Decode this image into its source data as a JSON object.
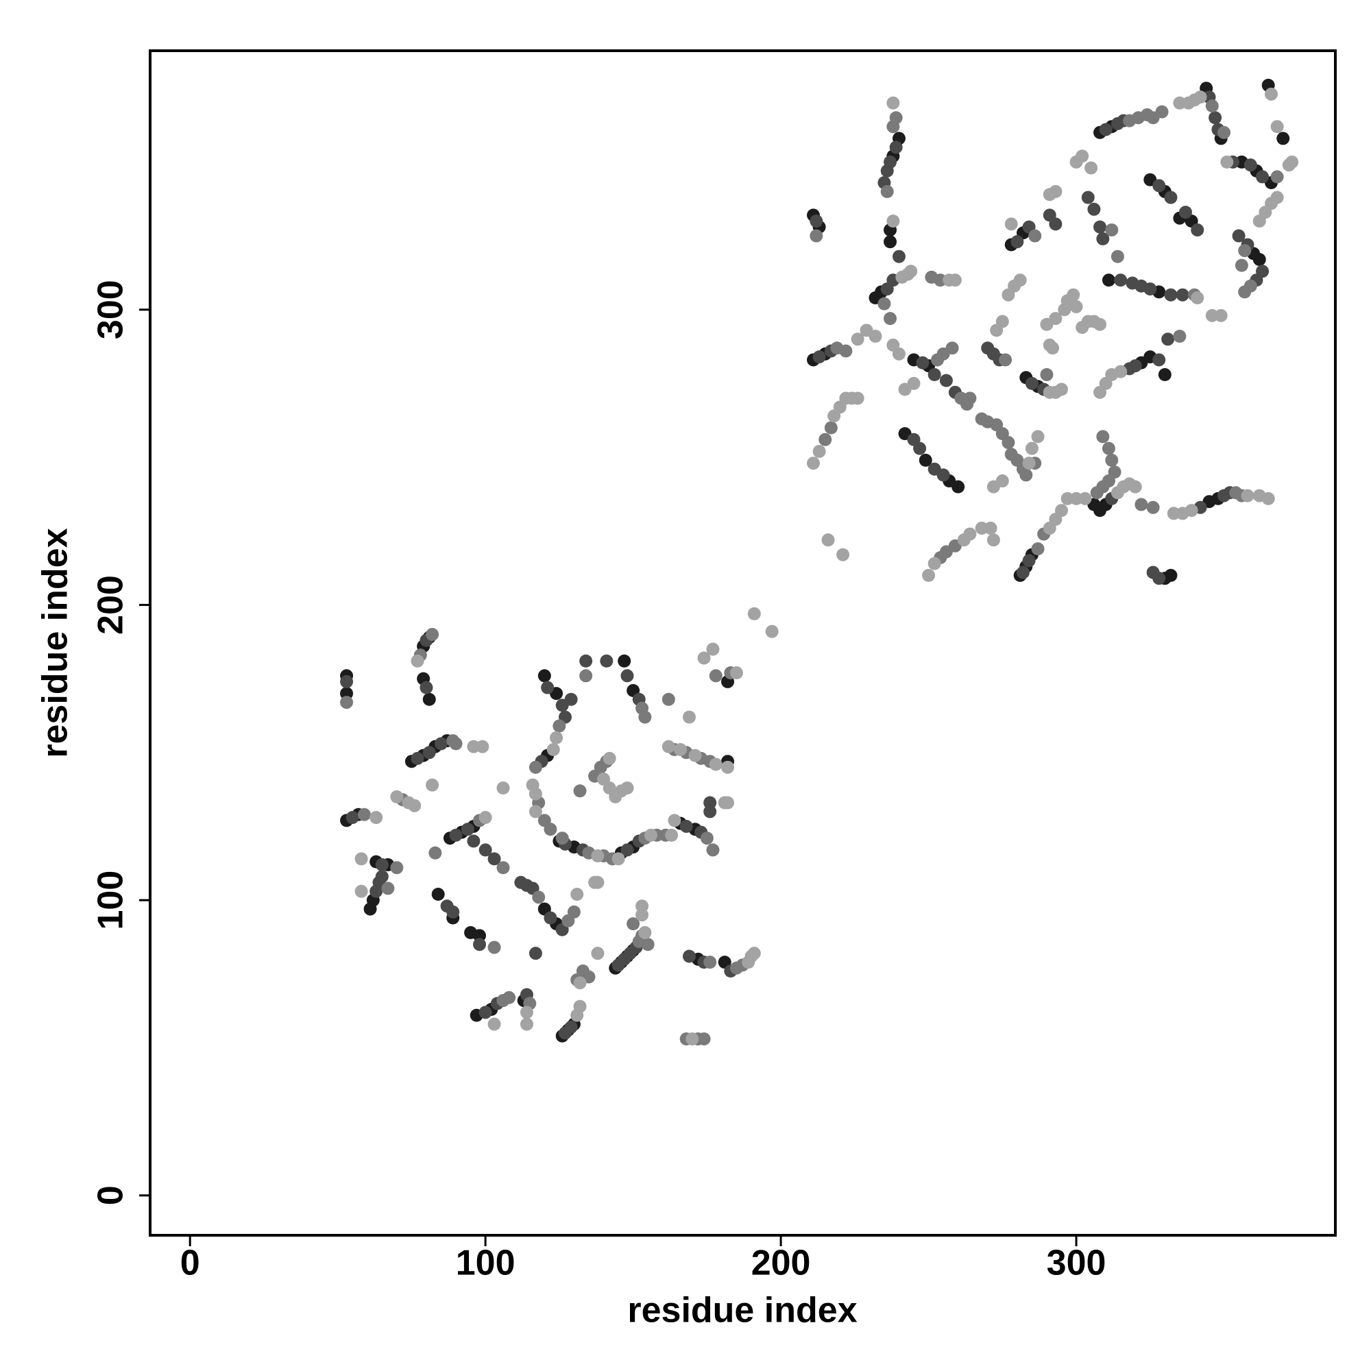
{
  "chart_data": {
    "type": "scatter",
    "xlabel": "residue index",
    "ylabel": "residue index",
    "xlim": [
      -13.5,
      387.7
    ],
    "ylim": [
      -13.5,
      387.7
    ],
    "xticks": [
      0,
      100,
      200,
      300
    ],
    "yticks": [
      0,
      100,
      200,
      300
    ],
    "series": [
      {
        "color": "#1c1c1c",
        "x": [
          53,
          53,
          79,
          81,
          79,
          81,
          75,
          79,
          83,
          87,
          53,
          57,
          63,
          67,
          62,
          61,
          88,
          92,
          96,
          84,
          89,
          95,
          98,
          97,
          102,
          113,
          120,
          124,
          126,
          128,
          130,
          144,
          146,
          148,
          150,
          172,
          181,
          147,
          150,
          182,
          182,
          166,
          171,
          146,
          150,
          125,
          130,
          120,
          124,
          121,
          211,
          213,
          211,
          215,
          237,
          237,
          238,
          240,
          234,
          232,
          245,
          250,
          242,
          249,
          257,
          260,
          281,
          283,
          285,
          278,
          282,
          283,
          287,
          306,
          308,
          310,
          322,
          325,
          330,
          308,
          312,
          325,
          330,
          335,
          339,
          344,
          349,
          356,
          361,
          366,
          370,
          360,
          362,
          332,
          330,
          345,
          348,
          311,
          328,
          365
        ],
        "values": [
          176,
          170,
          186,
          189,
          175,
          168,
          147,
          149,
          152,
          154,
          127,
          129,
          113,
          112,
          100,
          97,
          121,
          123,
          125,
          102,
          94,
          89,
          88,
          61,
          63,
          66,
          97,
          92,
          54,
          56,
          58,
          77,
          79,
          81,
          83,
          80,
          79,
          181,
          171,
          174,
          147,
          126,
          124,
          116,
          118,
          120,
          118,
          176,
          170,
          149,
          332,
          328,
          283,
          285,
          327,
          323,
          352,
          358,
          306,
          304,
          283,
          281,
          258,
          249,
          242,
          240,
          210,
          213,
          217,
          322,
          326,
          277,
          274,
          234,
          232,
          234,
          282,
          284,
          278,
          360,
          362,
          344,
          340,
          331,
          330,
          375,
          358,
          350,
          347,
          343,
          358,
          319,
          317,
          210,
          209,
          235,
          236,
          310,
          306,
          376
        ]
      },
      {
        "color": "#4a4a4a",
        "x": [
          53,
          80,
          80,
          77,
          81,
          85,
          55,
          65,
          65,
          64,
          63,
          90,
          94,
          96,
          100,
          103,
          87,
          89,
          98,
          100,
          104,
          114,
          112,
          114,
          116,
          122,
          126,
          117,
          127,
          129,
          145,
          147,
          149,
          151,
          169,
          174,
          183,
          141,
          148,
          152,
          134,
          176,
          176,
          168,
          173,
          148,
          152,
          127,
          133,
          121,
          126,
          127,
          129,
          119,
          212,
          213,
          217,
          235,
          236,
          237,
          239,
          236,
          238,
          240,
          248,
          252,
          256,
          259,
          245,
          247,
          252,
          255,
          282,
          284,
          270,
          272,
          274,
          280,
          284,
          291,
          293,
          285,
          289,
          312,
          304,
          306,
          308,
          309,
          318,
          320,
          328,
          310,
          314,
          316,
          328,
          332,
          337,
          341,
          345,
          347,
          348,
          353,
          359,
          363,
          355,
          358,
          363,
          361,
          328,
          326,
          342,
          350,
          352,
          315,
          319,
          322,
          325,
          332,
          336,
          331
        ],
        "values": [
          174,
          188,
          172,
          148,
          150,
          153,
          128,
          112,
          108,
          106,
          103,
          122,
          124,
          120,
          117,
          114,
          98,
          96,
          85,
          62,
          65,
          68,
          106,
          105,
          104,
          94,
          90,
          82,
          55,
          57,
          78,
          80,
          82,
          84,
          81,
          79,
          76,
          181,
          176,
          168,
          181,
          130,
          133,
          125,
          123,
          117,
          120,
          119,
          117,
          172,
          166,
          162,
          168,
          147,
          330,
          284,
          286,
          343,
          347,
          350,
          355,
          307,
          310,
          318,
          282,
          278,
          276,
          272,
          256,
          253,
          246,
          244,
          211,
          215,
          287,
          285,
          283,
          323,
          328,
          332,
          329,
          275,
          273,
          236,
          338,
          334,
          328,
          324,
          280,
          281,
          283,
          361,
          363,
          364,
          342,
          338,
          333,
          327,
          372,
          365,
          361,
          350,
          349,
          345,
          325,
          322,
          313,
          310,
          209,
          211,
          233,
          237,
          238,
          310,
          309,
          308,
          307,
          305,
          305,
          290
        ]
      },
      {
        "color": "#7a7a7a",
        "x": [
          53,
          78,
          82,
          89,
          90,
          72,
          59,
          70,
          67,
          83,
          98,
          106,
          103,
          106,
          108,
          115,
          118,
          128,
          130,
          131,
          133,
          135,
          152,
          153,
          155,
          150,
          168,
          172,
          174,
          176,
          185,
          187,
          178,
          183,
          164,
          168,
          173,
          176,
          162,
          175,
          177,
          154,
          158,
          161,
          135,
          140,
          143,
          153,
          154,
          134,
          132,
          141,
          139,
          137,
          117,
          125,
          118,
          120,
          122,
          126,
          212,
          219,
          222,
          215,
          217,
          238,
          239,
          236,
          237,
          235,
          251,
          254,
          253,
          255,
          258,
          261,
          263,
          264,
          254,
          256,
          259,
          268,
          270,
          273,
          275,
          277,
          278,
          280,
          282,
          283,
          286,
          287,
          289,
          276,
          286,
          290,
          309,
          311,
          312,
          313,
          311,
          309,
          307,
          318,
          321,
          324,
          326,
          329,
          346,
          350,
          368,
          359,
          357,
          356,
          357,
          322,
          326,
          354,
          356,
          312,
          314,
          335,
          340
        ],
        "values": [
          167,
          183,
          190,
          154,
          153,
          134,
          129,
          111,
          104,
          116,
          127,
          111,
          84,
          66,
          67,
          65,
          101,
          93,
          96,
          73,
          76,
          74,
          86,
          88,
          85,
          92,
          53,
          53,
          53,
          79,
          77,
          78,
          176,
          177,
          151,
          150,
          148,
          147,
          168,
          121,
          117,
          121,
          122,
          122,
          116,
          115,
          114,
          165,
          162,
          176,
          137,
          147,
          145,
          142,
          145,
          159,
          133,
          127,
          124,
          121,
          325,
          287,
          286,
          256,
          260,
          362,
          365,
          340,
          297,
          302,
          311,
          310,
          283,
          285,
          287,
          270,
          268,
          270,
          216,
          218,
          220,
          263,
          262,
          261,
          258,
          255,
          251,
          249,
          246,
          244,
          248,
          219,
          224,
          283,
          325,
          278,
          257,
          253,
          249,
          245,
          242,
          240,
          238,
          364,
          365,
          366,
          365,
          367,
          369,
          360,
          345,
          308,
          306,
          315,
          320,
          234,
          233,
          238,
          237,
          327,
          318,
          291,
          305
        ]
      },
      {
        "color": "#a3a3a3",
        "x": [
          77,
          74,
          76,
          70,
          63,
          58,
          58,
          82,
          100,
          103,
          114,
          114,
          131,
          132,
          132,
          131,
          138,
          137,
          138,
          153,
          153,
          154,
          170,
          189,
          190,
          191,
          191,
          197,
          174,
          177,
          185,
          182,
          181,
          182,
          162,
          166,
          171,
          178,
          169,
          164,
          156,
          163,
          145,
          138,
          142,
          140,
          142,
          144,
          146,
          148,
          123,
          124,
          116,
          117,
          117,
          106,
          96,
          99,
          211,
          213,
          218,
          220,
          222,
          224,
          226,
          216,
          221,
          226,
          229,
          232,
          238,
          240,
          238,
          238,
          241,
          243,
          244,
          257,
          259,
          245,
          242,
          250,
          252,
          262,
          264,
          268,
          271,
          272,
          272,
          275,
          284,
          285,
          287,
          291,
          293,
          295,
          273,
          275,
          277,
          279,
          281,
          278,
          291,
          293,
          291,
          293,
          295,
          290,
          293,
          296,
          297,
          299,
          300,
          291,
          292,
          297,
          300,
          303,
          314,
          316,
          318,
          320,
          302,
          304,
          306,
          308,
          308,
          310,
          312,
          315,
          300,
          302,
          305,
          335,
          338,
          340,
          342,
          351,
          372,
          373,
          366,
          368,
          362,
          364,
          366,
          368,
          341,
          346,
          349,
          333,
          336,
          339,
          358,
          362,
          365
        ],
        "values": [
          181,
          133,
          132,
          135,
          128,
          114,
          103,
          139,
          128,
          58,
          62,
          58,
          102,
          72,
          64,
          61,
          82,
          106,
          106,
          98,
          95,
          89,
          53,
          79,
          81,
          82,
          197,
          191,
          182,
          185,
          177,
          145,
          133,
          133,
          152,
          151,
          149,
          146,
          162,
          127,
          122,
          122,
          114,
          115,
          148,
          141,
          138,
          135,
          137,
          138,
          151,
          155,
          139,
          136,
          130,
          138,
          152,
          152,
          248,
          252,
          264,
          267,
          270,
          270,
          270,
          222,
          217,
          290,
          293,
          291,
          288,
          285,
          370,
          330,
          311,
          312,
          313,
          310,
          310,
          275,
          273,
          210,
          214,
          222,
          224,
          226,
          226,
          222,
          240,
          242,
          248,
          253,
          257,
          226,
          229,
          232,
          293,
          296,
          305,
          308,
          310,
          329,
          339,
          340,
          272,
          272,
          273,
          295,
          297,
          300,
          303,
          305,
          301,
          288,
          287,
          236,
          236,
          236,
          238,
          240,
          241,
          240,
          294,
          296,
          296,
          295,
          272,
          275,
          278,
          279,
          350,
          352,
          348,
          370,
          370,
          371,
          372,
          350,
          349,
          350,
          373,
          362,
          330,
          333,
          336,
          338,
          304,
          298,
          298,
          231,
          231,
          232,
          237,
          237,
          236
        ]
      }
    ]
  }
}
